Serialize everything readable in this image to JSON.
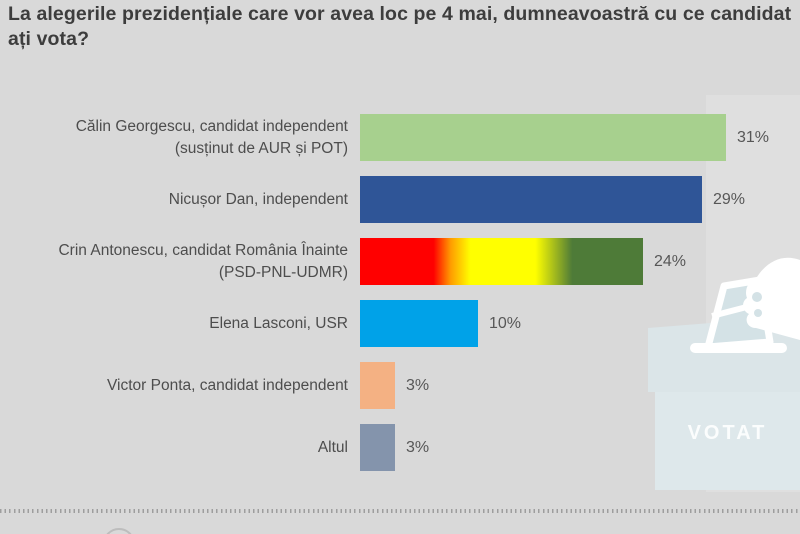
{
  "title": "La alegerile prezidențiale care vor avea loc pe 4 mai, dumneavoastră cu ce candidat ați vota?",
  "chart_data": {
    "type": "bar",
    "orientation": "horizontal",
    "unit": "%",
    "title": "La alegerile prezidențiale care vor avea loc pe 4 mai, dumneavoastră cu ce candidat ați vota?",
    "categories": [
      "Călin Georgescu, candidat independent (susținut de AUR și POT)",
      "Nicușor Dan, independent",
      "Crin Antonescu, candidat România Înainte (PSD-PNL-UDMR)",
      "Elena Lasconi, USR",
      "Victor Ponta, candidat independent",
      "Altul"
    ],
    "values": [
      31,
      29,
      24,
      10,
      3,
      3
    ],
    "value_labels": [
      "31%",
      "29%",
      "24%",
      "10%",
      "3%",
      "3%"
    ],
    "bar_colors": [
      "#a7d08e",
      "#2f5597",
      "gradient red→yellow→dark-green",
      "#00a2e8",
      "#f4b183",
      "#8494ac"
    ],
    "xlim": [
      0,
      31
    ],
    "grid": "off",
    "legend": "none",
    "value_label_position": "right-of-bar"
  },
  "bars": [
    {
      "label_line1": "Călin Georgescu, candidat independent",
      "label_line2": "(susținut de AUR și POT)",
      "value": 31,
      "value_label": "31%",
      "css_background": "#a7d08e"
    },
    {
      "label_line1": "Nicușor Dan, independent",
      "label_line2": "",
      "value": 29,
      "value_label": "29%",
      "css_background": "#2f5597"
    },
    {
      "label_line1": "Crin Antonescu, candidat România Înainte",
      "label_line2": "(PSD-PNL-UDMR)",
      "value": 24,
      "value_label": "24%",
      "css_background": "linear-gradient(90deg, #ff0000 0%, #ff0000 26%, #ff9b00 32%, #ffff00 39%, #ffff00 62%, #4e7b38 75%, #4e7b38 100%)"
    },
    {
      "label_line1": "Elena Lasconi, USR",
      "label_line2": "",
      "value": 10,
      "value_label": "10%",
      "css_background": "#00a2e8"
    },
    {
      "label_line1": "Victor Ponta, candidat independent",
      "label_line2": "",
      "value": 3,
      "value_label": "3%",
      "css_background": "#f4b183"
    },
    {
      "label_line1": "Altul",
      "label_line2": "",
      "value": 3,
      "value_label": "3%",
      "css_background": "#8494ac"
    }
  ],
  "illustration": {
    "name": "ballot-box",
    "votat_label": "VOTAT",
    "lid_color": "#dbe5e8",
    "body_color": "#dee8eb",
    "paper_color": "#d4e2e6",
    "outline_color": "#ffffff"
  },
  "colors": {
    "background": "#d9d9d9",
    "title_text": "#3d3d3d",
    "label_text": "#4d4d4d",
    "value_text": "#575757",
    "dotted_separator": "#9e9e9e"
  }
}
